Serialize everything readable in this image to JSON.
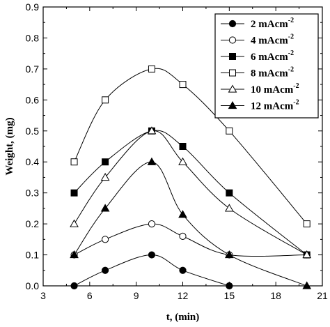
{
  "chart_data": {
    "type": "line",
    "title": "",
    "xlabel": "t, (min)",
    "ylabel": "Weight, (mg)",
    "xlim": [
      3,
      21
    ],
    "ylim": [
      0.0,
      0.9
    ],
    "xticks": [
      "3",
      "6",
      "9",
      "12",
      "15",
      "18",
      "21"
    ],
    "yticks": [
      "0.0",
      "0.1",
      "0.2",
      "0.3",
      "0.4",
      "0.5",
      "0.6",
      "0.7",
      "0.8",
      "0.9"
    ],
    "x": [
      5,
      7,
      10,
      12,
      15,
      20
    ],
    "grid": false,
    "legend_position": "top-right",
    "series": [
      {
        "name": "2 mAcm",
        "sup": "-2",
        "marker": "circle",
        "filled": true,
        "values": [
          0.0,
          0.05,
          0.1,
          0.05,
          0.0,
          null
        ]
      },
      {
        "name": "4 mAcm",
        "sup": "-2",
        "marker": "circle",
        "filled": false,
        "values": [
          0.1,
          0.15,
          0.2,
          0.16,
          0.1,
          0.1
        ]
      },
      {
        "name": "6 mAcm",
        "sup": "-2",
        "marker": "square",
        "filled": true,
        "values": [
          0.3,
          0.4,
          0.5,
          0.45,
          0.3,
          0.1
        ]
      },
      {
        "name": "8 mAcm",
        "sup": "-2",
        "marker": "square",
        "filled": false,
        "values": [
          0.4,
          0.6,
          0.7,
          0.65,
          0.5,
          0.2
        ]
      },
      {
        "name": "10 mAcm",
        "sup": "-2",
        "marker": "triangle",
        "filled": false,
        "values": [
          0.2,
          0.35,
          0.5,
          0.4,
          0.25,
          0.1
        ]
      },
      {
        "name": "12 mAcm",
        "sup": "-2",
        "marker": "triangle",
        "filled": true,
        "values": [
          0.1,
          0.25,
          0.4,
          0.23,
          0.1,
          0.0
        ]
      }
    ]
  }
}
